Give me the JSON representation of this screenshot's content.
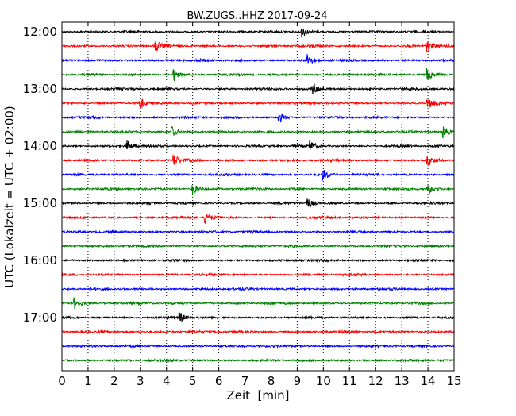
{
  "chart_data": {
    "type": "line",
    "title": "BW.ZUGS..HHZ 2017-09-24",
    "xlabel": "Zeit  [min]",
    "ylabel": "UTC (Lokalzeit = UTC + 02:00)",
    "xlim": [
      0,
      15
    ],
    "x_ticks": [
      "0",
      "1",
      "2",
      "3",
      "4",
      "5",
      "6",
      "7",
      "8",
      "9",
      "10",
      "11",
      "12",
      "13",
      "14",
      "15"
    ],
    "y_tick_labels": [
      "12:00",
      "13:00",
      "14:00",
      "15:00",
      "16:00",
      "17:00"
    ],
    "grid": "vertical dotted at every minute",
    "colors": [
      "#000000",
      "#ff0000",
      "#0000ff",
      "#008000"
    ],
    "series": [
      {
        "start": "12:00",
        "color": "#000000",
        "events": [
          9.2
        ]
      },
      {
        "start": "12:15",
        "color": "#ff0000",
        "events": [
          3.6,
          14.0
        ]
      },
      {
        "start": "12:30",
        "color": "#0000ff",
        "events": [
          9.4
        ]
      },
      {
        "start": "12:45",
        "color": "#008000",
        "events": [
          4.3,
          14.0
        ]
      },
      {
        "start": "13:00",
        "color": "#000000",
        "events": [
          9.6
        ]
      },
      {
        "start": "13:15",
        "color": "#ff0000",
        "events": [
          3.0,
          14.0
        ]
      },
      {
        "start": "13:30",
        "color": "#0000ff",
        "events": [
          8.3
        ]
      },
      {
        "start": "13:45",
        "color": "#008000",
        "events": [
          4.2,
          14.6
        ]
      },
      {
        "start": "14:00",
        "color": "#000000",
        "events": [
          2.5,
          9.5
        ]
      },
      {
        "start": "14:15",
        "color": "#ff0000",
        "events": [
          4.3,
          14.0
        ]
      },
      {
        "start": "14:30",
        "color": "#0000ff",
        "events": [
          10.0
        ]
      },
      {
        "start": "14:45",
        "color": "#008000",
        "events": [
          5.0,
          14.0
        ]
      },
      {
        "start": "15:00",
        "color": "#000000",
        "events": [
          9.4
        ]
      },
      {
        "start": "15:15",
        "color": "#ff0000",
        "events": [
          5.5
        ]
      },
      {
        "start": "15:30",
        "color": "#0000ff",
        "events": []
      },
      {
        "start": "15:45",
        "color": "#008000",
        "events": []
      },
      {
        "start": "16:00",
        "color": "#000000",
        "events": []
      },
      {
        "start": "16:15",
        "color": "#ff0000",
        "events": []
      },
      {
        "start": "16:30",
        "color": "#0000ff",
        "events": []
      },
      {
        "start": "16:45",
        "color": "#008000",
        "events": [
          0.5
        ]
      },
      {
        "start": "17:00",
        "color": "#000000",
        "events": [
          4.5
        ]
      },
      {
        "start": "17:15",
        "color": "#ff0000",
        "events": []
      },
      {
        "start": "17:30",
        "color": "#0000ff",
        "events": []
      },
      {
        "start": "17:45",
        "color": "#008000",
        "events": []
      }
    ]
  }
}
